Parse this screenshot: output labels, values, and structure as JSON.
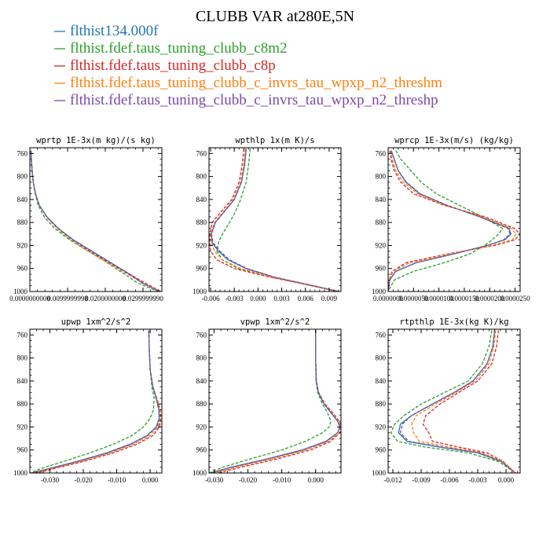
{
  "figure": {
    "title": "CLUBB VAR at280E,5N"
  },
  "legend": [
    {
      "label": "flthist134.000f",
      "color": "#1f77b4",
      "dash": false
    },
    {
      "label": "flthist.fdef.taus_tuning_clubb_c8m2",
      "color": "#2ca02c",
      "dash": true
    },
    {
      "label": "flthist.fdef.taus_tuning_clubb_c8p",
      "color": "#d62728",
      "dash": true
    },
    {
      "label": "flthist.fdef.taus_tuning_clubb_c_invrs_tau_wpxp_n2_threshm",
      "color": "#ff7f0e",
      "dash": true
    },
    {
      "label": "flthist.fdef.taus_tuning_clubb_c_invrs_tau_wpxp_n2_threshp",
      "color": "#7b4aa8",
      "dash": true
    }
  ],
  "chart_data": [
    {
      "type": "line",
      "title": "wprtp  1E-3x(m kg)/(s kg)",
      "xlim": [
        0.0,
        0.035
      ],
      "ylim": [
        1000,
        750
      ],
      "xticks": [
        0.0,
        0.01,
        0.02,
        0.03
      ],
      "xtick_labels": [
        "0.0000000000",
        "0.0099999998",
        "0.0200000000",
        "0.0299999990"
      ],
      "yticks": [
        760,
        800,
        840,
        880,
        920,
        960,
        1000
      ],
      "ytick_labels": [
        "760",
        "800",
        "840",
        "880",
        "920",
        "960",
        "1000"
      ],
      "y": [
        755,
        770,
        790,
        810,
        830,
        850,
        870,
        890,
        910,
        930,
        950,
        970,
        985,
        1000
      ],
      "series": [
        {
          "values": [
            0.0003,
            0.0004,
            0.0006,
            0.0009,
            0.0015,
            0.0025,
            0.0045,
            0.0075,
            0.0115,
            0.0165,
            0.0215,
            0.0265,
            0.0298,
            0.0345
          ]
        },
        {
          "values": [
            0.0003,
            0.0004,
            0.0006,
            0.0009,
            0.0014,
            0.0022,
            0.0038,
            0.0065,
            0.0105,
            0.0155,
            0.0205,
            0.0252,
            0.0285,
            0.034
          ]
        },
        {
          "values": [
            0.0003,
            0.0004,
            0.0006,
            0.0009,
            0.0015,
            0.0025,
            0.0044,
            0.0072,
            0.011,
            0.0158,
            0.021,
            0.0265,
            0.0305,
            0.0348
          ]
        },
        {
          "values": [
            0.0003,
            0.0004,
            0.0006,
            0.0009,
            0.0015,
            0.0025,
            0.0044,
            0.0072,
            0.0108,
            0.0155,
            0.0205,
            0.026,
            0.03,
            0.0346
          ]
        },
        {
          "values": [
            0.0003,
            0.0004,
            0.0006,
            0.0009,
            0.0015,
            0.0025,
            0.0045,
            0.0074,
            0.0113,
            0.0163,
            0.0213,
            0.0263,
            0.0297,
            0.0344
          ]
        }
      ]
    },
    {
      "type": "line",
      "title": "wpthlp  1x(m K)/s",
      "xlim": [
        -0.0062,
        0.0105
      ],
      "ylim": [
        1000,
        750
      ],
      "xticks": [
        -0.006,
        -0.003,
        0.0,
        0.003,
        0.006,
        0.009
      ],
      "xtick_labels": [
        "-0.006",
        "-0.003",
        "0.000",
        "0.003",
        "0.006",
        "0.009"
      ],
      "yticks": [
        760,
        800,
        840,
        880,
        920,
        960,
        1000
      ],
      "ytick_labels": [
        "760",
        "800",
        "840",
        "880",
        "920",
        "960",
        "1000"
      ],
      "y": [
        752,
        780,
        810,
        840,
        860,
        880,
        900,
        915,
        930,
        945,
        960,
        975,
        990,
        1000
      ],
      "series": [
        {
          "values": [
            -0.0015,
            -0.0017,
            -0.0021,
            -0.003,
            -0.0042,
            -0.0054,
            -0.0059,
            -0.0058,
            -0.005,
            -0.0038,
            -0.0015,
            0.002,
            0.007,
            0.0102
          ]
        },
        {
          "values": [
            -0.001,
            -0.0012,
            -0.0015,
            -0.0022,
            -0.0028,
            -0.0036,
            -0.0045,
            -0.005,
            -0.0052,
            -0.0045,
            -0.0025,
            0.0018,
            0.0068,
            0.01
          ]
        },
        {
          "values": [
            -0.0018,
            -0.002,
            -0.0024,
            -0.0033,
            -0.0046,
            -0.0058,
            -0.0061,
            -0.0061,
            -0.006,
            -0.0052,
            -0.003,
            0.0015,
            0.0068,
            0.0103
          ]
        },
        {
          "values": [
            -0.0016,
            -0.0018,
            -0.0022,
            -0.0031,
            -0.0043,
            -0.0055,
            -0.006,
            -0.0059,
            -0.0055,
            -0.0045,
            -0.0022,
            0.0018,
            0.0069,
            0.0102
          ]
        },
        {
          "values": [
            -0.0015,
            -0.0017,
            -0.0021,
            -0.003,
            -0.0042,
            -0.0054,
            -0.0059,
            -0.0057,
            -0.0048,
            -0.0036,
            -0.0014,
            0.0021,
            0.007,
            0.0102
          ]
        }
      ]
    },
    {
      "type": "line",
      "title": "wprcp  1E-3x(m/s) (kg/kg)",
      "xlim": [
        0.0,
        2.6e-05
      ],
      "ylim": [
        1000,
        750
      ],
      "xticks": [
        0.0,
        5e-06,
        1e-05,
        1.5e-05,
        2e-05,
        2.5e-05
      ],
      "xtick_labels": [
        "0.0000000",
        "0.0000050",
        "0.0000100",
        "0.0000150",
        "0.0000200",
        "0.0000250"
      ],
      "yticks": [
        760,
        800,
        840,
        880,
        920,
        960,
        1000
      ],
      "ytick_labels": [
        "760",
        "800",
        "840",
        "880",
        "920",
        "960",
        "1000"
      ],
      "y": [
        755,
        770,
        790,
        810,
        830,
        850,
        870,
        890,
        900,
        910,
        920,
        935,
        950,
        965,
        980,
        1000
      ],
      "series": [
        {
          "values": [
            6e-07,
            1.2e-06,
            2e-06,
            3.5e-06,
            6.2e-06,
            1.15e-05,
            1.8e-05,
            2.38e-05,
            2.42e-05,
            2.3e-05,
            1.95e-05,
            1.28e-05,
            5.5e-06,
            1.5e-06,
            3e-07,
            0.0
          ]
        },
        {
          "values": [
            1.5e-06,
            2.5e-06,
            4.5e-06,
            6.5e-06,
            9.5e-06,
            1.4e-05,
            1.85e-05,
            2.25e-05,
            2.18e-05,
            2.05e-05,
            1.9e-05,
            1.6e-05,
            1.1e-05,
            5e-06,
            1.2e-06,
            0.0
          ]
        },
        {
          "values": [
            3e-07,
            6e-07,
            1.2e-06,
            2.5e-06,
            5e-06,
            1.1e-05,
            1.9e-05,
            2.48e-05,
            2.6e-05,
            2.5e-05,
            2.1e-05,
            1.15e-05,
            3.5e-06,
            8e-07,
            2e-07,
            0.0
          ]
        },
        {
          "values": [
            4e-07,
            8e-07,
            1.5e-06,
            3e-06,
            5.8e-06,
            1.12e-05,
            1.85e-05,
            2.42e-05,
            2.52e-05,
            2.45e-05,
            2.05e-05,
            1.2e-05,
            4.2e-06,
            1e-06,
            2e-07,
            0.0
          ]
        },
        {
          "values": [
            6e-07,
            1.2e-06,
            2e-06,
            3.6e-06,
            6.3e-06,
            1.16e-05,
            1.8e-05,
            2.36e-05,
            2.4e-05,
            2.28e-05,
            1.95e-05,
            1.27e-05,
            5.5e-06,
            1.5e-06,
            3e-07,
            0.0
          ]
        }
      ]
    },
    {
      "type": "line",
      "title": "upwp  1xm^2/s^2",
      "xlim": [
        -0.036,
        0.0035
      ],
      "ylim": [
        1000,
        750
      ],
      "xticks": [
        -0.03,
        -0.02,
        -0.01,
        0.0
      ],
      "xtick_labels": [
        "-0.030",
        "-0.020",
        "-0.010",
        "0.000"
      ],
      "yticks": [
        760,
        800,
        840,
        880,
        920,
        960,
        1000
      ],
      "ytick_labels": [
        "760",
        "800",
        "840",
        "880",
        "920",
        "960",
        "1000"
      ],
      "y": [
        752,
        780,
        820,
        850,
        870,
        890,
        905,
        920,
        935,
        950,
        965,
        980,
        992,
        1000
      ],
      "series": [
        {
          "values": [
            -0.0004,
            -0.0003,
            0.0,
            0.0008,
            0.0018,
            0.0026,
            0.0027,
            0.0018,
            -0.001,
            -0.006,
            -0.013,
            -0.022,
            -0.03,
            -0.0355
          ]
        },
        {
          "values": [
            -0.0004,
            -0.0003,
            0.0,
            0.0005,
            0.0012,
            0.001,
            0.0,
            -0.002,
            -0.0055,
            -0.011,
            -0.018,
            -0.026,
            -0.0325,
            -0.036
          ]
        },
        {
          "values": [
            -0.0004,
            -0.0003,
            0.0,
            0.0008,
            0.002,
            0.003,
            0.0032,
            0.0028,
            0.0008,
            -0.004,
            -0.011,
            -0.02,
            -0.0285,
            -0.034
          ]
        },
        {
          "values": [
            -0.0004,
            -0.0003,
            0.0,
            0.0008,
            0.0019,
            0.0028,
            0.003,
            0.0024,
            0.0,
            -0.005,
            -0.012,
            -0.021,
            -0.0292,
            -0.0348
          ]
        },
        {
          "values": [
            -0.0004,
            -0.0003,
            0.0,
            0.0008,
            0.0018,
            0.0026,
            0.0028,
            0.002,
            -0.0008,
            -0.0058,
            -0.0128,
            -0.0218,
            -0.0298,
            -0.0353
          ]
        }
      ]
    },
    {
      "type": "line",
      "title": "vpwp  1xm^2/s^2",
      "xlim": [
        -0.0315,
        0.0075
      ],
      "ylim": [
        1000,
        750
      ],
      "xticks": [
        -0.03,
        -0.02,
        -0.01,
        0.0
      ],
      "xtick_labels": [
        "-0.030",
        "-0.020",
        "-0.010",
        "0.000"
      ],
      "yticks": [
        760,
        800,
        840,
        880,
        920,
        960,
        1000
      ],
      "ytick_labels": [
        "760",
        "800",
        "840",
        "880",
        "920",
        "960",
        "1000"
      ],
      "y": [
        752,
        800,
        840,
        860,
        880,
        895,
        910,
        920,
        930,
        945,
        960,
        975,
        990,
        1000
      ],
      "series": [
        {
          "values": [
            0.0,
            0.0,
            0.0002,
            0.0008,
            0.0025,
            0.0045,
            0.0065,
            0.0072,
            0.0065,
            0.003,
            -0.004,
            -0.014,
            -0.025,
            -0.031
          ]
        },
        {
          "values": [
            0.0,
            0.0,
            0.0001,
            0.0006,
            0.002,
            0.0035,
            0.0045,
            0.004,
            0.002,
            -0.003,
            -0.01,
            -0.019,
            -0.0275,
            -0.0315
          ]
        },
        {
          "values": [
            0.0,
            0.0,
            0.0002,
            0.0009,
            0.0028,
            0.005,
            0.007,
            0.0076,
            0.0072,
            0.0045,
            -0.0015,
            -0.011,
            -0.022,
            -0.029
          ]
        },
        {
          "values": [
            0.0,
            0.0,
            0.0002,
            0.0008,
            0.0026,
            0.0047,
            0.0068,
            0.0074,
            0.007,
            0.0038,
            -0.0028,
            -0.0125,
            -0.0235,
            -0.03
          ]
        },
        {
          "values": [
            0.0,
            0.0,
            0.0002,
            0.0008,
            0.0025,
            0.0045,
            0.0065,
            0.0072,
            0.0065,
            0.0032,
            -0.0038,
            -0.0138,
            -0.0248,
            -0.0308
          ]
        }
      ]
    },
    {
      "type": "line",
      "title": "rtpthlp  1E-3x(kg K)/kg",
      "xlim": [
        -0.0125,
        0.0015
      ],
      "ylim": [
        1000,
        750
      ],
      "xticks": [
        -0.012,
        -0.009,
        -0.006,
        -0.003,
        0.0
      ],
      "xtick_labels": [
        "-0.012",
        "-0.009",
        "-0.006",
        "-0.003",
        "0.000"
      ],
      "yticks": [
        760,
        800,
        840,
        880,
        920,
        960,
        1000
      ],
      "ytick_labels": [
        "760",
        "800",
        "840",
        "880",
        "920",
        "960",
        "1000"
      ],
      "y": [
        752,
        780,
        810,
        840,
        860,
        880,
        900,
        915,
        930,
        945,
        955,
        965,
        980,
        1000
      ],
      "series": [
        {
          "values": [
            -0.0012,
            -0.0014,
            -0.002,
            -0.0035,
            -0.0055,
            -0.0078,
            -0.01,
            -0.0112,
            -0.0114,
            -0.0105,
            -0.007,
            -0.003,
            -0.0005,
            0.001
          ]
        },
        {
          "values": [
            -0.0015,
            -0.0018,
            -0.0025,
            -0.004,
            -0.0065,
            -0.009,
            -0.0108,
            -0.0118,
            -0.0122,
            -0.0115,
            -0.0085,
            -0.004,
            -0.0008,
            0.001
          ]
        },
        {
          "values": [
            -0.0008,
            -0.001,
            -0.0015,
            -0.003,
            -0.005,
            -0.007,
            -0.0085,
            -0.0088,
            -0.0082,
            -0.0078,
            -0.005,
            -0.002,
            -0.0003,
            0.001
          ]
        },
        {
          "values": [
            -0.0011,
            -0.0013,
            -0.0018,
            -0.0033,
            -0.0053,
            -0.0075,
            -0.0095,
            -0.01,
            -0.0098,
            -0.0092,
            -0.006,
            -0.0025,
            -0.0004,
            0.001
          ]
        },
        {
          "values": [
            -0.0012,
            -0.0014,
            -0.002,
            -0.0035,
            -0.0055,
            -0.0078,
            -0.01,
            -0.011,
            -0.0112,
            -0.0103,
            -0.0068,
            -0.0028,
            -0.0005,
            0.001
          ]
        }
      ]
    }
  ]
}
